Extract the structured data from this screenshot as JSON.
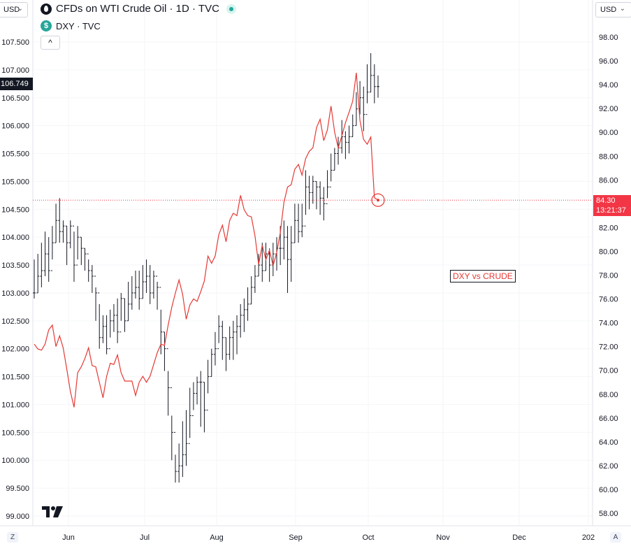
{
  "legend": {
    "main_title": "CFDs on WTI Crude Oil · 1D · TVC",
    "secondary_title": "DXY · TVC",
    "collapse_glyph": "^"
  },
  "currency_left": "USD",
  "currency_right": "USD",
  "annotation": "DXY vs CRUDE",
  "price_tag": {
    "price": "84.30",
    "countdown": "13:21:37"
  },
  "dxy_tag": "106.749",
  "corner_buttons": {
    "left": "Z",
    "right": "A"
  },
  "colors": {
    "crude_line": "#e53935",
    "dxy_bars": "#131722",
    "grid": "#f0f3fa",
    "price_tag": "#f23645"
  },
  "chart_data": {
    "type": "line",
    "x_ticks": [
      "Jun",
      "Jul",
      "Aug",
      "Sep",
      "Oct",
      "Nov",
      "Dec",
      "202"
    ],
    "left_axis": {
      "name": "DXY",
      "ticks": [
        "107.500",
        "107.000",
        "106.500",
        "106.000",
        "105.500",
        "105.000",
        "104.500",
        "104.000",
        "103.500",
        "103.000",
        "102.500",
        "102.000",
        "101.500",
        "101.000",
        "100.500",
        "100.000",
        "99.500",
        "99.000"
      ],
      "range": [
        98.9,
        107.9
      ]
    },
    "right_axis": {
      "name": "CFDs on WTI Crude Oil",
      "ticks": [
        "98.00",
        "96.00",
        "94.00",
        "92.00",
        "90.00",
        "88.00",
        "86.00",
        "84.00",
        "82.00",
        "80.00",
        "78.00",
        "76.00",
        "74.00",
        "72.00",
        "70.00",
        "68.00",
        "66.00",
        "64.00",
        "62.00",
        "60.00",
        "58.00"
      ],
      "range": [
        57.0,
        100.0
      ]
    },
    "price_line": 84.3,
    "series": [
      {
        "name": "CFDs on WTI Crude Oil",
        "type": "line",
        "axis": "right",
        "y": [
          72.2,
          71.8,
          71.7,
          72.2,
          73.4,
          73.8,
          72.0,
          72.9,
          71.9,
          70.1,
          68.2,
          66.9,
          69.8,
          70.3,
          71.0,
          71.9,
          70.4,
          70.3,
          69.0,
          67.7,
          69.5,
          70.6,
          70.5,
          71.3,
          69.8,
          69.1,
          69.1,
          69.1,
          67.9,
          69.0,
          69.5,
          69.0,
          69.5,
          70.5,
          71.5,
          72.2,
          72.1,
          73.8,
          75.3,
          76.5,
          77.6,
          76.4,
          74.3,
          75.5,
          76.0,
          75.8,
          76.6,
          77.5,
          79.6,
          79.0,
          79.6,
          81.4,
          82.2,
          80.8,
          82.6,
          83.2,
          83.0,
          84.7,
          83.5,
          83.0,
          82.9,
          81.3,
          78.9,
          80.5,
          79.3,
          80.1,
          78.8,
          79.9,
          81.6,
          84.1,
          85.4,
          85.6,
          86.9,
          87.3,
          86.4,
          87.8,
          88.4,
          88.7,
          90.4,
          91.1,
          89.3,
          90.2,
          92.2,
          90.0,
          88.7,
          89.7,
          90.8,
          91.7,
          92.6,
          95.0,
          91.0,
          89.4,
          89.0,
          89.6,
          84.5,
          84.3
        ]
      },
      {
        "name": "DXY",
        "type": "ohlc",
        "axis": "left",
        "close": [
          103.0,
          103.3,
          103.4,
          103.7,
          103.4,
          103.9,
          104.3,
          104.1,
          104.2,
          103.9,
          104.2,
          103.5,
          104.0,
          103.8,
          103.7,
          103.4,
          103.3,
          103.0,
          102.2,
          102.4,
          102.0,
          102.5,
          102.6,
          102.3,
          102.9,
          102.5,
          102.8,
          103.0,
          103.1,
          102.9,
          103.2,
          103.3,
          103.0,
          103.3,
          103.1,
          102.3,
          102.0,
          101.3,
          100.5,
          99.8,
          99.9,
          100.1,
          100.3,
          100.8,
          101.2,
          101.4,
          101.4,
          100.9,
          101.5,
          101.9,
          102.0,
          102.4,
          102.2,
          101.9,
          102.2,
          102.3,
          102.4,
          102.6,
          102.7,
          102.8,
          103.1,
          103.3,
          103.5,
          103.4,
          103.7,
          103.5,
          103.7,
          103.8,
          103.8,
          104.0,
          103.6,
          103.9,
          104.3,
          104.1,
          104.2,
          104.9,
          104.8,
          105.0,
          104.9,
          104.7,
          104.6,
          104.9,
          105.2,
          105.5,
          105.6,
          105.8,
          105.7,
          105.8,
          106.0,
          106.3,
          106.5,
          106.2,
          106.6,
          106.9,
          106.7,
          106.7
        ],
        "high": [
          103.6,
          103.7,
          103.9,
          104.1,
          104.0,
          104.2,
          104.6,
          104.7,
          104.3,
          104.2,
          104.3,
          104.1,
          104.2,
          104.0,
          103.8,
          103.6,
          103.5,
          103.1,
          102.8,
          102.6,
          102.6,
          102.7,
          102.8,
          102.9,
          103.0,
          102.9,
          103.2,
          103.3,
          103.4,
          103.4,
          103.5,
          103.6,
          103.5,
          103.4,
          103.2,
          102.7,
          102.3,
          101.6,
          100.8,
          100.1,
          100.3,
          100.7,
          100.9,
          101.3,
          101.4,
          101.5,
          101.6,
          101.4,
          101.8,
          102.0,
          102.3,
          102.6,
          102.5,
          102.2,
          102.4,
          102.5,
          102.6,
          102.8,
          102.9,
          103.1,
          103.3,
          103.5,
          103.7,
          103.9,
          103.9,
          103.8,
          103.9,
          104.0,
          104.2,
          104.3,
          104.2,
          104.2,
          104.6,
          104.6,
          104.6,
          105.2,
          105.1,
          105.1,
          105.0,
          105.0,
          104.9,
          105.2,
          105.5,
          105.6,
          105.8,
          106.1,
          105.9,
          106.0,
          106.2,
          106.6,
          106.8,
          106.7,
          107.1,
          107.3,
          107.1,
          106.9
        ],
        "low": [
          102.9,
          103.0,
          103.1,
          103.3,
          103.2,
          103.6,
          103.9,
          103.9,
          103.9,
          103.5,
          103.8,
          103.2,
          103.6,
          103.5,
          103.4,
          103.2,
          103.0,
          102.5,
          102.0,
          102.1,
          101.9,
          102.2,
          102.3,
          102.1,
          102.5,
          102.3,
          102.5,
          102.7,
          102.9,
          102.7,
          102.9,
          103.0,
          102.8,
          102.9,
          102.7,
          101.9,
          101.6,
          100.8,
          100.0,
          99.6,
          99.6,
          99.7,
          99.9,
          100.4,
          100.9,
          101.0,
          100.6,
          100.5,
          101.2,
          101.5,
          101.7,
          102.1,
          101.8,
          101.6,
          101.8,
          101.8,
          101.9,
          102.2,
          102.3,
          102.5,
          102.8,
          103.0,
          103.3,
          103.2,
          103.4,
          103.2,
          103.3,
          103.4,
          103.5,
          103.6,
          103.0,
          103.2,
          103.9,
          103.9,
          104.0,
          104.4,
          104.5,
          104.6,
          104.5,
          104.4,
          104.3,
          104.7,
          105.0,
          105.2,
          105.3,
          105.5,
          105.4,
          105.5,
          105.8,
          106.0,
          106.2,
          105.9,
          106.4,
          106.6,
          106.4,
          106.5
        ]
      }
    ]
  }
}
